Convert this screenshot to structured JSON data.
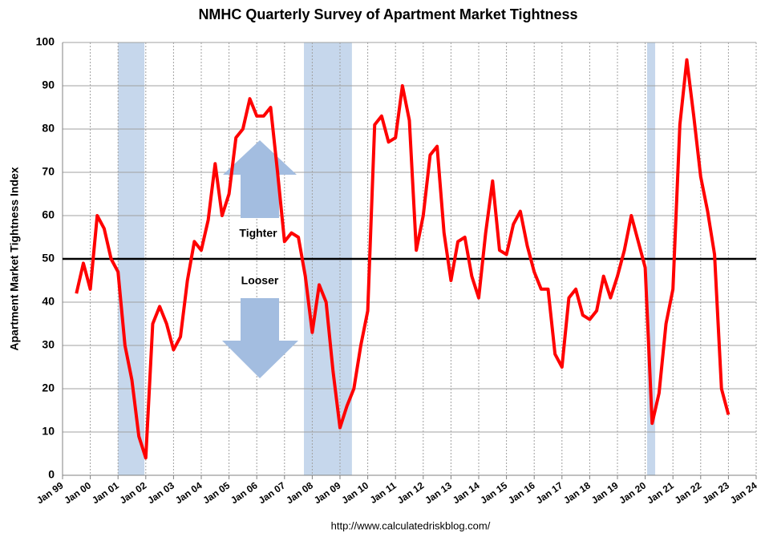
{
  "chart_data": {
    "type": "line",
    "title": "NMHC Quarterly Survey of Apartment Market Tightness",
    "y_label": "Apartment Market Tightness Index",
    "source": "http://www.calculatedriskblog.com/",
    "annotations": {
      "up": "Tighter",
      "down": "Looser"
    },
    "reference_line": 50,
    "recessions": [
      [
        2001.0,
        2001.95
      ],
      [
        2007.7,
        2009.43
      ],
      [
        2020.07,
        2020.36
      ]
    ],
    "x": [
      1999.5,
      1999.75,
      2000,
      2000.25,
      2000.5,
      2000.75,
      2001,
      2001.25,
      2001.5,
      2001.75,
      2002,
      2002.25,
      2002.5,
      2002.75,
      2003,
      2003.25,
      2003.5,
      2003.75,
      2004,
      2004.25,
      2004.5,
      2004.75,
      2005,
      2005.25,
      2005.5,
      2005.75,
      2006,
      2006.25,
      2006.5,
      2006.75,
      2007,
      2007.25,
      2007.5,
      2007.75,
      2008,
      2008.25,
      2008.5,
      2008.75,
      2009,
      2009.25,
      2009.5,
      2009.75,
      2010,
      2010.25,
      2010.5,
      2010.75,
      2011,
      2011.25,
      2011.5,
      2011.75,
      2012,
      2012.25,
      2012.5,
      2012.75,
      2013,
      2013.25,
      2013.5,
      2013.75,
      2014,
      2014.25,
      2014.5,
      2014.75,
      2015,
      2015.25,
      2015.5,
      2015.75,
      2016,
      2016.25,
      2016.5,
      2016.75,
      2017,
      2017.25,
      2017.5,
      2017.75,
      2018,
      2018.25,
      2018.5,
      2018.75,
      2019,
      2019.25,
      2019.5,
      2019.75,
      2020,
      2020.25,
      2020.5,
      2020.75,
      2021,
      2021.25,
      2021.5,
      2021.75,
      2022,
      2022.25,
      2022.5,
      2022.75,
      2023
    ],
    "series": [
      {
        "name": "Index",
        "color": "#ff0000",
        "values": [
          42,
          49,
          43,
          60,
          57,
          50,
          47,
          30,
          22,
          9,
          4,
          35,
          39,
          35,
          29,
          32,
          45,
          54,
          52,
          59,
          72,
          60,
          65,
          78,
          80,
          87,
          83,
          83,
          85,
          70,
          54,
          56,
          55,
          46,
          33,
          44,
          40,
          24,
          11,
          16,
          20,
          30,
          38,
          81,
          83,
          77,
          78,
          90,
          82,
          52,
          60,
          74,
          76,
          56,
          45,
          54,
          55,
          46,
          41,
          56,
          68,
          52,
          51,
          58,
          61,
          53,
          47,
          43,
          43,
          28,
          25,
          41,
          43,
          37,
          36,
          38,
          46,
          41,
          46,
          52,
          60,
          54,
          48,
          12,
          19,
          35,
          43,
          81,
          96,
          83,
          69,
          61,
          51,
          20,
          14
        ]
      }
    ],
    "xlim": [
      1999,
      2024
    ],
    "ylim": [
      0,
      100
    ],
    "yticks": [
      0,
      10,
      20,
      30,
      40,
      50,
      60,
      70,
      80,
      90,
      100
    ],
    "xticks": [
      {
        "value": 1999,
        "label": "Jan 99"
      },
      {
        "value": 2000,
        "label": "Jan 00"
      },
      {
        "value": 2001,
        "label": "Jan 01"
      },
      {
        "value": 2002,
        "label": "Jan 02"
      },
      {
        "value": 2003,
        "label": "Jan 03"
      },
      {
        "value": 2004,
        "label": "Jan 04"
      },
      {
        "value": 2005,
        "label": "Jan 05"
      },
      {
        "value": 2006,
        "label": "Jan 06"
      },
      {
        "value": 2007,
        "label": "Jan 07"
      },
      {
        "value": 2008,
        "label": "Jan 08"
      },
      {
        "value": 2009,
        "label": "Jan 09"
      },
      {
        "value": 2010,
        "label": "Jan 10"
      },
      {
        "value": 2011,
        "label": "Jan 11"
      },
      {
        "value": 2012,
        "label": "Jan 12"
      },
      {
        "value": 2013,
        "label": "Jan 13"
      },
      {
        "value": 2014,
        "label": "Jan 14"
      },
      {
        "value": 2015,
        "label": "Jan 15"
      },
      {
        "value": 2016,
        "label": "Jan 16"
      },
      {
        "value": 2017,
        "label": "Jan 17"
      },
      {
        "value": 2018,
        "label": "Jan 18"
      },
      {
        "value": 2019,
        "label": "Jan 19"
      },
      {
        "value": 2020,
        "label": "Jan 20"
      },
      {
        "value": 2021,
        "label": "Jan 21"
      },
      {
        "value": 2022,
        "label": "Jan 22"
      },
      {
        "value": 2023,
        "label": "Jan 23"
      },
      {
        "value": 2024,
        "label": "Jan 24"
      }
    ],
    "grid": true
  }
}
